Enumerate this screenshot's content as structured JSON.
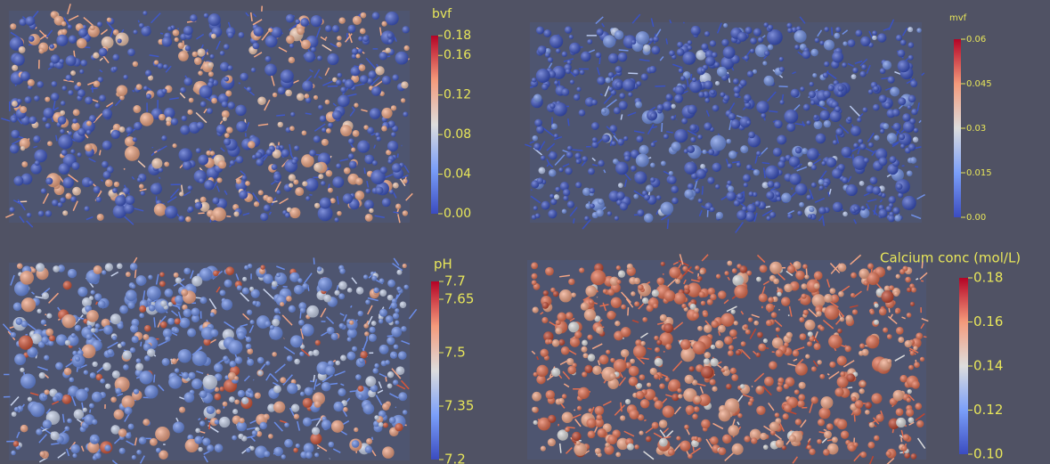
{
  "panels": [
    {
      "title": "bvf",
      "ticks": [
        {
          "value": 0.18,
          "label": "0.18"
        },
        {
          "value": 0.16,
          "label": "0.16"
        },
        {
          "value": 0.12,
          "label": "0.12"
        },
        {
          "value": 0.08,
          "label": "0.08"
        },
        {
          "value": 0.04,
          "label": "0.04"
        },
        {
          "value": 0,
          "label": "0.00"
        }
      ]
    },
    {
      "title": "mvf",
      "ticks": [
        {
          "value": 0.06,
          "label": "0.06"
        },
        {
          "value": 0.045,
          "label": "0.045"
        },
        {
          "value": 0.03,
          "label": "0.03"
        },
        {
          "value": 0.015,
          "label": "0.015"
        },
        {
          "value": 0,
          "label": "0.00"
        }
      ]
    },
    {
      "title": "pH",
      "ticks": [
        {
          "value": 7.7,
          "label": "7.7"
        },
        {
          "value": 7.65,
          "label": "7.65"
        },
        {
          "value": 7.5,
          "label": "7.5"
        },
        {
          "value": 7.35,
          "label": "7.35"
        },
        {
          "value": 7.2,
          "label": "7.2"
        }
      ]
    },
    {
      "title": "Calcium conc (mol/L)",
      "ticks": [
        {
          "value": 0.18,
          "label": "0.18"
        },
        {
          "value": 0.16,
          "label": "0.16"
        },
        {
          "value": 0.14,
          "label": "0.14"
        },
        {
          "value": 0.12,
          "label": "0.12"
        },
        {
          "value": 0.1,
          "label": "0.10"
        }
      ]
    }
  ]
}
